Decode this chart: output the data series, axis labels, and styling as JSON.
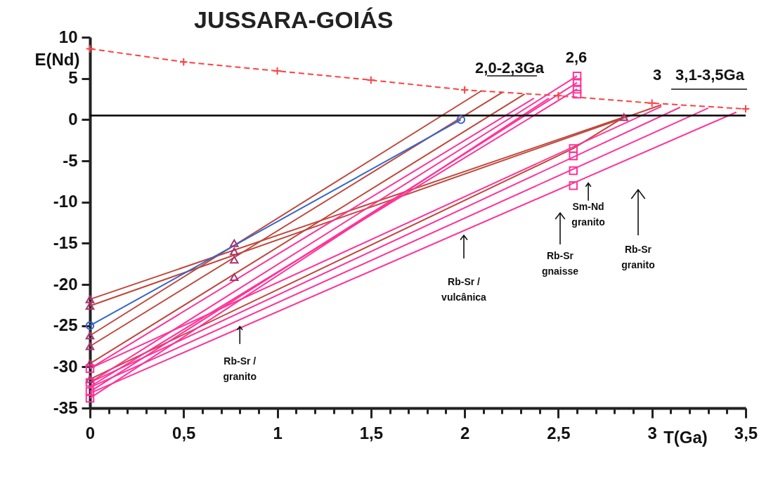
{
  "chart_data": {
    "type": "line",
    "title": "JUSSARA-GOIÁS",
    "xlabel": "T(Ga)",
    "ylabel": "E(Nd)",
    "xlim": [
      0,
      3.5
    ],
    "ylim": [
      -35,
      10
    ],
    "xticks": [
      {
        "value": 0,
        "label": "0"
      },
      {
        "value": 0.1,
        "label": null
      },
      {
        "value": 0.2,
        "label": null
      },
      {
        "value": 0.3,
        "label": null
      },
      {
        "value": 0.4,
        "label": null
      },
      {
        "value": 0.5,
        "label": "0,5"
      },
      {
        "value": 0.6,
        "label": null
      },
      {
        "value": 0.7,
        "label": null
      },
      {
        "value": 0.8,
        "label": null
      },
      {
        "value": 0.9,
        "label": null
      },
      {
        "value": 1,
        "label": "1"
      },
      {
        "value": 1.1,
        "label": null
      },
      {
        "value": 1.2,
        "label": null
      },
      {
        "value": 1.3,
        "label": null
      },
      {
        "value": 1.4,
        "label": null
      },
      {
        "value": 1.5,
        "label": "1,5"
      },
      {
        "value": 1.6,
        "label": null
      },
      {
        "value": 1.7,
        "label": null
      },
      {
        "value": 1.8,
        "label": null
      },
      {
        "value": 1.9,
        "label": null
      },
      {
        "value": 2,
        "label": "2"
      },
      {
        "value": 2.1,
        "label": null
      },
      {
        "value": 2.2,
        "label": null
      },
      {
        "value": 2.3,
        "label": null
      },
      {
        "value": 2.4,
        "label": null
      },
      {
        "value": 2.5,
        "label": "2,5"
      },
      {
        "value": 2.6,
        "label": null
      },
      {
        "value": 2.7,
        "label": null
      },
      {
        "value": 2.8,
        "label": null
      },
      {
        "value": 2.9,
        "label": null
      },
      {
        "value": 3,
        "label": "3"
      },
      {
        "value": 3.1,
        "label": null
      },
      {
        "value": 3.2,
        "label": null
      },
      {
        "value": 3.3,
        "label": null
      },
      {
        "value": 3.4,
        "label": null
      },
      {
        "value": 3.5,
        "label": "3,5"
      }
    ],
    "yticks": [
      -35,
      -30,
      -25,
      -20,
      -15,
      -10,
      -5,
      0,
      5,
      10
    ],
    "grid": false,
    "ref_lines": [
      {
        "axis": "y",
        "value": 0.5,
        "color": "#000000"
      }
    ],
    "series": [
      {
        "color": "#ff4040",
        "line_style": "dashed",
        "marker": "cross",
        "x": [
          0,
          0.5,
          1,
          1.5,
          2,
          2.5,
          3,
          3.5
        ],
        "values": [
          8.6,
          7.0,
          5.9,
          4.8,
          3.6,
          2.9,
          2.0,
          1.3
        ]
      },
      {
        "color": "#c0473a",
        "x": [
          0,
          2.85
        ],
        "values": [
          -21.8,
          0.3
        ]
      },
      {
        "color": "#c0473a",
        "x": [
          0,
          3.05
        ],
        "values": [
          -22.6,
          1.8
        ]
      },
      {
        "color": "#c0473a",
        "x": [
          0,
          2.09
        ],
        "values": [
          -26.2,
          3.5
        ]
      },
      {
        "color": "#c0473a",
        "x": [
          0,
          2.2
        ],
        "values": [
          -27.5,
          3.3
        ]
      },
      {
        "color": "#c0473a",
        "x": [
          0,
          2.32
        ],
        "values": [
          -29.6,
          3.1
        ]
      },
      {
        "color": "#c0473a",
        "x": [
          0,
          2.58,
          2.85
        ],
        "values": [
          -31.5,
          -3.5,
          0.3
        ]
      },
      {
        "color": "#3366cc",
        "x": [
          0,
          1.98
        ],
        "values": [
          -25,
          0
        ]
      },
      {
        "color": "#ff3399",
        "x": [
          0,
          2.6
        ],
        "values": [
          -31.9,
          5.3
        ]
      },
      {
        "color": "#ff3399",
        "x": [
          0,
          2.6
        ],
        "values": [
          -33.0,
          4.5
        ]
      },
      {
        "color": "#ff3399",
        "x": [
          0,
          2.45
        ],
        "values": [
          -33.8,
          2.6
        ]
      },
      {
        "color": "#ff3399",
        "x": [
          0,
          2.37
        ],
        "values": [
          -30.2,
          2.6
        ]
      },
      {
        "color": "#ff3399",
        "x": [
          0,
          2.6
        ],
        "values": [
          -32.4,
          3.7
        ]
      },
      {
        "color": "#ff3399",
        "x": [
          0,
          3.15
        ],
        "values": [
          -31.9,
          1.5
        ]
      },
      {
        "color": "#ff3399",
        "x": [
          0,
          3.3
        ],
        "values": [
          -32.5,
          1.4
        ]
      },
      {
        "color": "#ff3399",
        "x": [
          0,
          3.45
        ],
        "values": [
          -33.2,
          0.9
        ]
      },
      {
        "color": "#ff3399",
        "x": [
          0,
          3.05
        ],
        "values": [
          -30.2,
          1.6
        ]
      },
      {
        "type": "scatter",
        "color": "#a8336e",
        "marker": "triangle",
        "x": [
          0,
          0,
          0,
          0,
          0,
          0,
          0.77,
          0.77,
          0.77,
          0.77,
          2.85
        ],
        "values": [
          -21.8,
          -22.6,
          -26.2,
          -27.5,
          -29.6,
          -31.5,
          -15.0,
          -16.0,
          -17.0,
          -19.1,
          0.3
        ]
      },
      {
        "type": "scatter",
        "color": "#ff3399",
        "marker": "square",
        "x": [
          0,
          0,
          0,
          0,
          2.58,
          2.58,
          2.58,
          2.58,
          2.6,
          2.6,
          2.6,
          2.6
        ],
        "values": [
          -30.2,
          -31.9,
          -33.0,
          -33.8,
          -3.5,
          -4.4,
          -6.2,
          -8.0,
          5.3,
          4.5,
          3.7,
          3.1
        ]
      },
      {
        "type": "scatter",
        "color": "#3366cc",
        "marker": "circle",
        "x": [
          0,
          1.98
        ],
        "values": [
          -25,
          0
        ]
      }
    ],
    "annotations": [
      "2,0-2,3Ga",
      "2,6",
      "3",
      "3,1-3,5Ga",
      {
        "text": "Rb-Sr /\ngranito",
        "x": 0.8,
        "y": -25.1
      },
      "Rb-Sr /\nvulcânica",
      "Rb-Sr\ngnaisse",
      {
        "text": "Sm-Nd\ngranito",
        "x": 2.66,
        "y": -7.7
      },
      "Rb-Sr\ngranito"
    ]
  }
}
